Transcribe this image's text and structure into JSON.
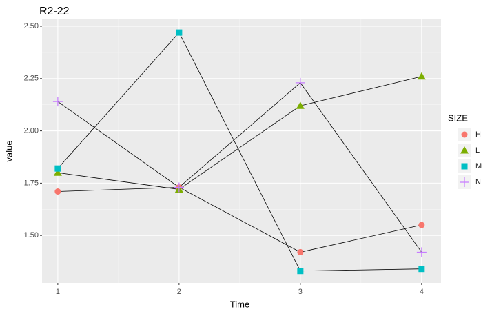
{
  "chart_data": {
    "type": "line",
    "title": "R2-22",
    "x_label": "Time",
    "y_label": "value",
    "x": [
      1,
      2,
      3,
      4
    ],
    "series": [
      {
        "name": "H",
        "color": "#F8766D",
        "shape": "circle",
        "values": [
          1.71,
          1.73,
          1.42,
          1.55
        ]
      },
      {
        "name": "L",
        "color": "#7CAE00",
        "shape": "triangle",
        "values": [
          1.8,
          1.72,
          2.12,
          2.26
        ]
      },
      {
        "name": "M",
        "color": "#00BFC4",
        "shape": "square",
        "values": [
          1.82,
          2.47,
          1.33,
          1.34
        ]
      },
      {
        "name": "N",
        "color": "#C77CFF",
        "shape": "plus",
        "values": [
          2.14,
          1.73,
          2.23,
          1.42
        ]
      }
    ],
    "line_color": "#000000",
    "legend_title": "SIZE",
    "xlim": [
      0.87,
      4.16
    ],
    "ylim": [
      1.273,
      2.533
    ],
    "xticks": [
      1,
      2,
      3,
      4
    ],
    "yticks": [
      {
        "value": 1.5,
        "label": "1.50"
      },
      {
        "value": 1.75,
        "label": "1.75"
      },
      {
        "value": 2.0,
        "label": "2.00"
      },
      {
        "value": 2.25,
        "label": "2.25"
      },
      {
        "value": 2.5,
        "label": "2.50"
      }
    ],
    "grid": true
  }
}
